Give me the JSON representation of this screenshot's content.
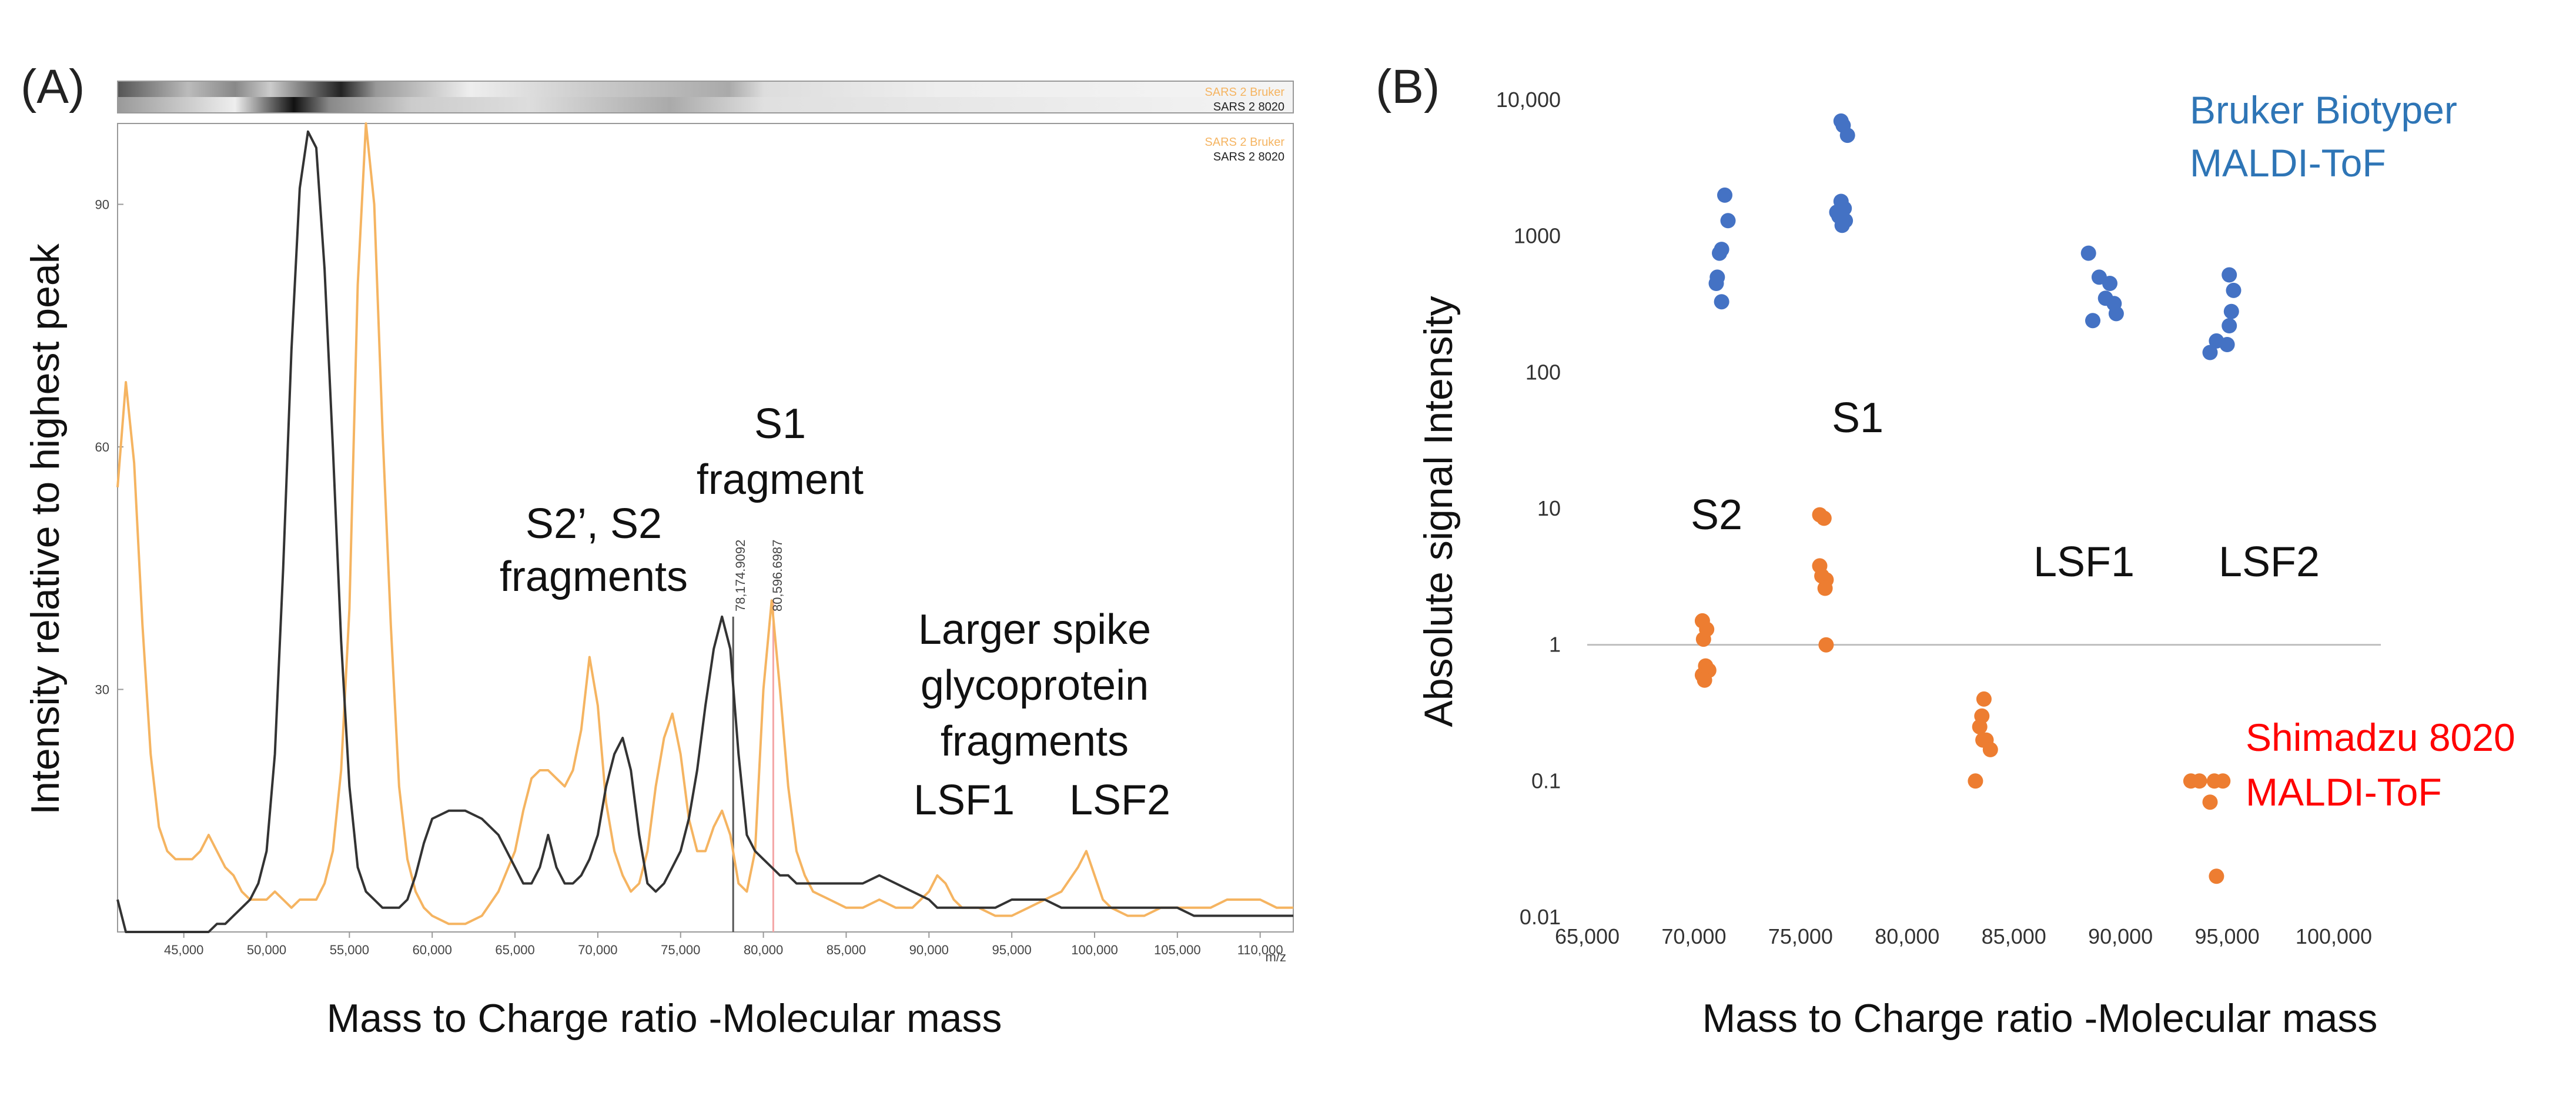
{
  "colors": {
    "bruker": "#f5b461",
    "shimadzu8020": "#333333",
    "blue_points": "#4472c4",
    "orange_points": "#ed7d31",
    "blue_text": "#2e75b6",
    "red_text": "#ff0000",
    "peak_line_dark": "#555555",
    "peak_line_pink": "#f4a6a6"
  },
  "panelA": {
    "label": "(A)",
    "xlabel": "Mass to Charge ratio -Molecular mass",
    "ylabel": "Intensity relative to highest peak",
    "unit": "m/z",
    "legend": [
      "SARS 2 Bruker",
      "SARS 2 8020"
    ],
    "annotations": {
      "s2": [
        "S2’, S2",
        "fragments"
      ],
      "s1": [
        "S1",
        "fragment"
      ],
      "larger": [
        "Larger spike",
        "glycoprotein",
        "fragments"
      ],
      "lsf1": "LSF1",
      "lsf2": "LSF2"
    },
    "peak_labels": [
      "78,174.9092",
      "80,596.6987"
    ]
  },
  "panelB": {
    "label": "(B)",
    "xlabel": "Mass to Charge ratio -Molecular mass",
    "ylabel": "Absolute signal Intensity",
    "blue_label": [
      "Bruker Biotyper",
      "MALDI-ToF"
    ],
    "red_label": [
      "Shimadzu 8020",
      "MALDI-ToF"
    ],
    "group_labels": {
      "s2": "S2",
      "s1": "S1",
      "lsf1": "LSF1",
      "lsf2": "LSF2"
    }
  },
  "chart_data": [
    {
      "id": "A",
      "type": "line",
      "title": "",
      "xlabel": "Mass to Charge ratio -Molecular mass",
      "ylabel": "Intensity relative to highest peak",
      "xlim": [
        41000,
        112000
      ],
      "ylim": [
        0,
        100
      ],
      "xticks": [
        45000,
        50000,
        55000,
        60000,
        65000,
        70000,
        75000,
        80000,
        85000,
        90000,
        95000,
        100000,
        105000,
        110000
      ],
      "xtick_labels": [
        "45,000",
        "50,000",
        "55,000",
        "60,000",
        "65,000",
        "70,000",
        "75,000",
        "80,000",
        "85,000",
        "90,000",
        "95,000",
        "100,000",
        "105,000",
        "110,000"
      ],
      "yticks": [
        30,
        60,
        90
      ],
      "ytick_labels": [
        "30",
        "60",
        "90"
      ],
      "series": [
        {
          "name": "SARS 2 Bruker",
          "x": [
            41000,
            41500,
            42000,
            42500,
            43000,
            43500,
            44000,
            44500,
            45000,
            45500,
            46000,
            46500,
            47000,
            47500,
            48000,
            48500,
            49000,
            49500,
            50000,
            50500,
            51000,
            51500,
            52000,
            52500,
            53000,
            53500,
            54000,
            54500,
            55000,
            55500,
            56000,
            56500,
            57000,
            57500,
            58000,
            58500,
            59000,
            59500,
            60000,
            61000,
            62000,
            63000,
            64000,
            65000,
            65500,
            66000,
            66500,
            67000,
            67500,
            68000,
            68500,
            69000,
            69500,
            70000,
            70500,
            71000,
            71500,
            72000,
            72500,
            73000,
            73500,
            74000,
            74500,
            75000,
            75500,
            76000,
            76500,
            77000,
            77500,
            78000,
            78500,
            79000,
            79500,
            80000,
            80500,
            81000,
            81500,
            82000,
            82500,
            83000,
            84000,
            85000,
            86000,
            87000,
            88000,
            89000,
            90000,
            90500,
            91000,
            91500,
            92000,
            93000,
            94000,
            95000,
            96000,
            97000,
            98000,
            99000,
            99500,
            100000,
            100500,
            101000,
            102000,
            103000,
            104000,
            105000,
            106000,
            107000,
            108000,
            109000,
            110000,
            111000,
            112000
          ],
          "y": [
            55,
            68,
            58,
            38,
            22,
            13,
            10,
            9,
            9,
            9,
            10,
            12,
            10,
            8,
            7,
            5,
            4,
            4,
            4,
            5,
            4,
            3,
            4,
            4,
            4,
            6,
            10,
            20,
            40,
            80,
            100,
            90,
            62,
            38,
            18,
            9,
            5,
            3,
            2,
            1,
            1,
            2,
            5,
            10,
            15,
            19,
            20,
            20,
            19,
            18,
            20,
            25,
            34,
            28,
            16,
            10,
            7,
            5,
            6,
            10,
            18,
            24,
            27,
            22,
            14,
            10,
            10,
            13,
            15,
            12,
            6,
            5,
            10,
            30,
            41,
            30,
            18,
            10,
            7,
            5,
            4,
            3,
            3,
            4,
            3,
            3,
            5,
            7,
            6,
            4,
            3,
            3,
            2,
            2,
            3,
            4,
            5,
            8,
            10,
            7,
            4,
            3,
            2,
            2,
            3,
            3,
            3,
            3,
            4,
            4,
            4,
            3,
            3
          ]
        },
        {
          "name": "SARS 2 8020",
          "x": [
            41000,
            41500,
            42000,
            42500,
            43000,
            43500,
            44000,
            44500,
            45000,
            45500,
            46000,
            46500,
            47000,
            47500,
            48000,
            48500,
            49000,
            49500,
            50000,
            50500,
            51000,
            51500,
            52000,
            52500,
            53000,
            53500,
            54000,
            54500,
            55000,
            55500,
            56000,
            56500,
            57000,
            57500,
            58000,
            58500,
            59000,
            59500,
            60000,
            61000,
            62000,
            63000,
            64000,
            65000,
            65500,
            66000,
            66500,
            67000,
            67500,
            68000,
            68500,
            69000,
            69500,
            70000,
            70500,
            71000,
            71500,
            72000,
            72500,
            73000,
            73500,
            74000,
            74500,
            75000,
            75500,
            76000,
            76500,
            77000,
            77500,
            78000,
            78500,
            79000,
            79500,
            80000,
            80500,
            81000,
            81500,
            82000,
            82500,
            83000,
            84000,
            85000,
            86000,
            87000,
            88000,
            89000,
            90000,
            90500,
            91000,
            91500,
            92000,
            93000,
            94000,
            95000,
            96000,
            97000,
            98000,
            99000,
            99500,
            100000,
            100500,
            101000,
            102000,
            103000,
            104000,
            105000,
            106000,
            107000,
            108000,
            109000,
            110000,
            111000,
            112000
          ],
          "y": [
            4,
            0,
            0,
            0,
            0,
            0,
            0,
            0,
            0,
            0,
            0,
            0,
            1,
            1,
            2,
            3,
            4,
            6,
            10,
            22,
            45,
            72,
            92,
            99,
            97,
            82,
            60,
            36,
            18,
            8,
            5,
            4,
            3,
            3,
            3,
            4,
            7,
            11,
            14,
            15,
            15,
            14,
            12,
            8,
            6,
            6,
            8,
            12,
            8,
            6,
            6,
            7,
            9,
            12,
            18,
            22,
            24,
            20,
            12,
            6,
            5,
            6,
            8,
            10,
            14,
            20,
            28,
            35,
            39,
            35,
            22,
            12,
            10,
            9,
            8,
            7,
            7,
            6,
            6,
            6,
            6,
            6,
            6,
            7,
            6,
            5,
            4,
            3,
            3,
            3,
            3,
            3,
            3,
            4,
            4,
            4,
            3,
            3,
            3,
            3,
            3,
            3,
            3,
            3,
            3,
            3,
            2,
            2,
            2,
            2,
            2,
            2,
            2
          ]
        }
      ]
    },
    {
      "id": "B",
      "type": "scatter",
      "title": "",
      "xlabel": "Mass to Charge ratio -Molecular mass",
      "ylabel": "Absolute signal Intensity",
      "xscale": "linear",
      "yscale": "log",
      "xlim": [
        65000,
        100000
      ],
      "ylim": [
        0.01,
        10000
      ],
      "xticks": [
        65000,
        70000,
        75000,
        80000,
        85000,
        90000,
        95000,
        100000
      ],
      "xtick_labels": [
        "65,000",
        "70,000",
        "75,000",
        "80,000",
        "85,000",
        "90,000",
        "95,000",
        "100,000"
      ],
      "yticks": [
        0.01,
        0.1,
        1,
        10,
        100,
        1000,
        10000
      ],
      "ytick_labels": [
        "0.01",
        "0.1",
        "1",
        "10",
        "100",
        "1000",
        "10,000"
      ],
      "series": [
        {
          "name": "Bruker Biotyper MALDI-ToF",
          "points": [
            [
              71450,
              2000
            ],
            [
              71600,
              1300
            ],
            [
              71300,
              800
            ],
            [
              71200,
              750
            ],
            [
              71100,
              500
            ],
            [
              71050,
              450
            ],
            [
              71300,
              330
            ],
            [
              76900,
              7000
            ],
            [
              77000,
              6500
            ],
            [
              77200,
              5500
            ],
            [
              76900,
              1800
            ],
            [
              77050,
              1600
            ],
            [
              76700,
              1500
            ],
            [
              77100,
              1300
            ],
            [
              76950,
              1200
            ],
            [
              76800,
              1400
            ],
            [
              88500,
              750
            ],
            [
              89000,
              500
            ],
            [
              89500,
              450
            ],
            [
              89300,
              350
            ],
            [
              89700,
              320
            ],
            [
              89800,
              270
            ],
            [
              88700,
              240
            ],
            [
              95100,
              520
            ],
            [
              95300,
              400
            ],
            [
              95200,
              280
            ],
            [
              95100,
              220
            ],
            [
              95000,
              160
            ],
            [
              94500,
              170
            ],
            [
              94200,
              140
            ]
          ]
        },
        {
          "name": "Shimadzu 8020 MALDI-ToF",
          "points": [
            [
              70400,
              1.5
            ],
            [
              70600,
              1.3
            ],
            [
              70450,
              1.1
            ],
            [
              70550,
              0.7
            ],
            [
              70400,
              0.6
            ],
            [
              70700,
              0.65
            ],
            [
              70500,
              0.55
            ],
            [
              75900,
              9
            ],
            [
              76100,
              8.5
            ],
            [
              75900,
              3.8
            ],
            [
              76000,
              3.2
            ],
            [
              76200,
              3
            ],
            [
              76150,
              2.6
            ],
            [
              76200,
              1.0
            ],
            [
              83600,
              0.4
            ],
            [
              83500,
              0.3
            ],
            [
              83400,
              0.25
            ],
            [
              83550,
              0.2
            ],
            [
              83700,
              0.2
            ],
            [
              83900,
              0.17
            ],
            [
              83200,
              0.1
            ],
            [
              93300,
              0.1
            ],
            [
              93700,
              0.1
            ],
            [
              94400,
              0.1
            ],
            [
              94800,
              0.1
            ],
            [
              94200,
              0.07
            ],
            [
              94500,
              0.02
            ]
          ]
        }
      ],
      "reference_line": {
        "y": 1
      }
    }
  ]
}
